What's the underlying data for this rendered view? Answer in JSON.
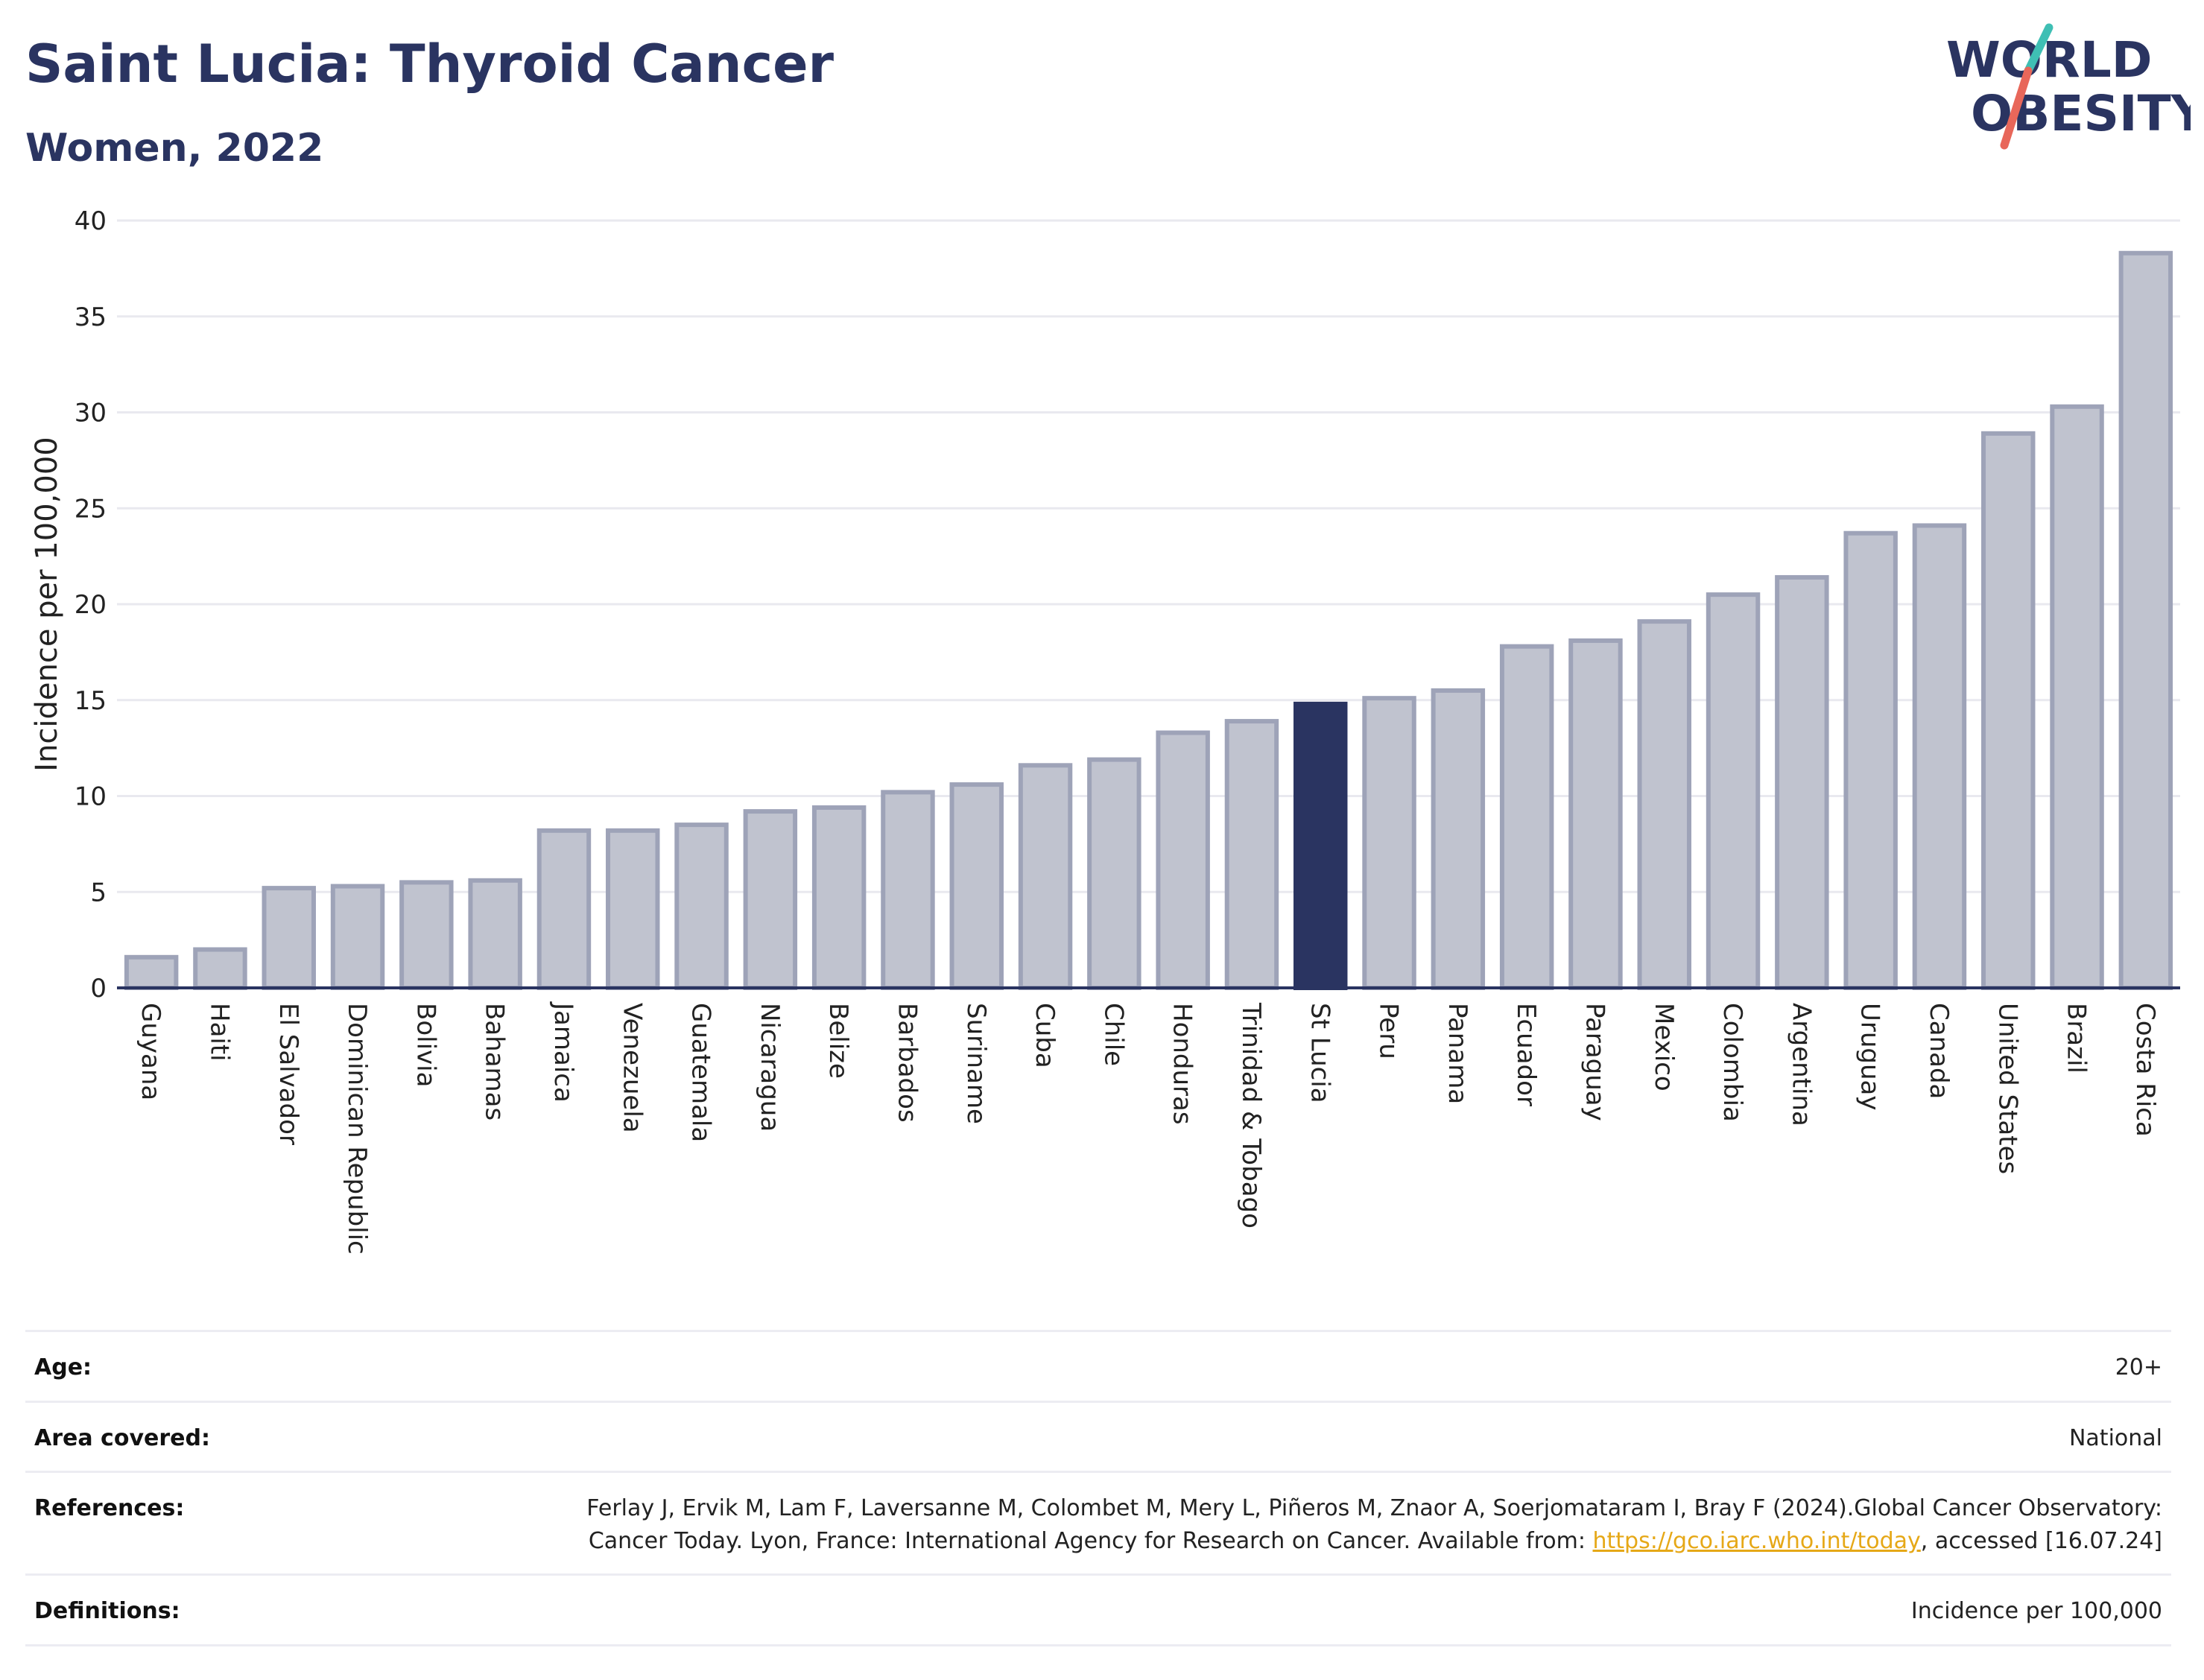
{
  "header": {
    "title": "Saint Lucia: Thyroid Cancer",
    "subtitle": "Women, 2022"
  },
  "logo": {
    "line1": "WORLD",
    "line2": "OBESITY",
    "accent_colors": [
      "#3fbfb4",
      "#e8675a"
    ],
    "text_color": "#2a3461"
  },
  "chart_data": {
    "type": "bar",
    "ylabel": "Incidence per 100,000",
    "ylim": [
      0,
      40
    ],
    "yticks": [
      0,
      5,
      10,
      15,
      20,
      25,
      30,
      35,
      40
    ],
    "grid": true,
    "highlight": "St Lucia",
    "colors": {
      "bar_fill": "#c0c3cf",
      "bar_stroke": "#9ea3b8",
      "highlight_fill": "#2a3461",
      "axis": "#2a3461",
      "grid": "#e9e9ef"
    },
    "categories": [
      "Guyana",
      "Haiti",
      "El Salvador",
      "Dominican Republic",
      "Bolivia",
      "Bahamas",
      "Jamaica",
      "Venezuela",
      "Guatemala",
      "Nicaragua",
      "Belize",
      "Barbados",
      "Suriname",
      "Cuba",
      "Chile",
      "Honduras",
      "Trinidad & Tobago",
      "St Lucia",
      "Peru",
      "Panama",
      "Ecuador",
      "Paraguay",
      "Mexico",
      "Colombia",
      "Argentina",
      "Uruguay",
      "Canada",
      "United States",
      "Brazil",
      "Costa Rica"
    ],
    "values": [
      1.6,
      2.0,
      5.2,
      5.3,
      5.5,
      5.6,
      8.2,
      8.2,
      8.5,
      9.2,
      9.4,
      10.2,
      10.6,
      11.6,
      11.9,
      13.3,
      13.9,
      14.8,
      15.1,
      15.5,
      17.8,
      18.1,
      19.1,
      20.5,
      21.4,
      23.7,
      24.1,
      28.9,
      30.3,
      38.3
    ]
  },
  "meta": {
    "rows": [
      {
        "key": "Age:",
        "value": "20+"
      },
      {
        "key": "Area covered:",
        "value": "National"
      },
      {
        "key": "References:",
        "value_pre": "Ferlay J, Ervik M, Lam F, Laversanne M, Colombet M, Mery L, Piñeros M, Znaor A, Soerjomataram I, Bray F (2024).Global Cancer Observatory: Cancer Today. Lyon, France: International Agency for Research on Cancer. Available from: ",
        "link": "https://gco.iarc.who.int/today",
        "value_post": ", accessed [16.07.24]"
      },
      {
        "key": "Definitions:",
        "value": "Incidence per 100,000"
      }
    ]
  }
}
